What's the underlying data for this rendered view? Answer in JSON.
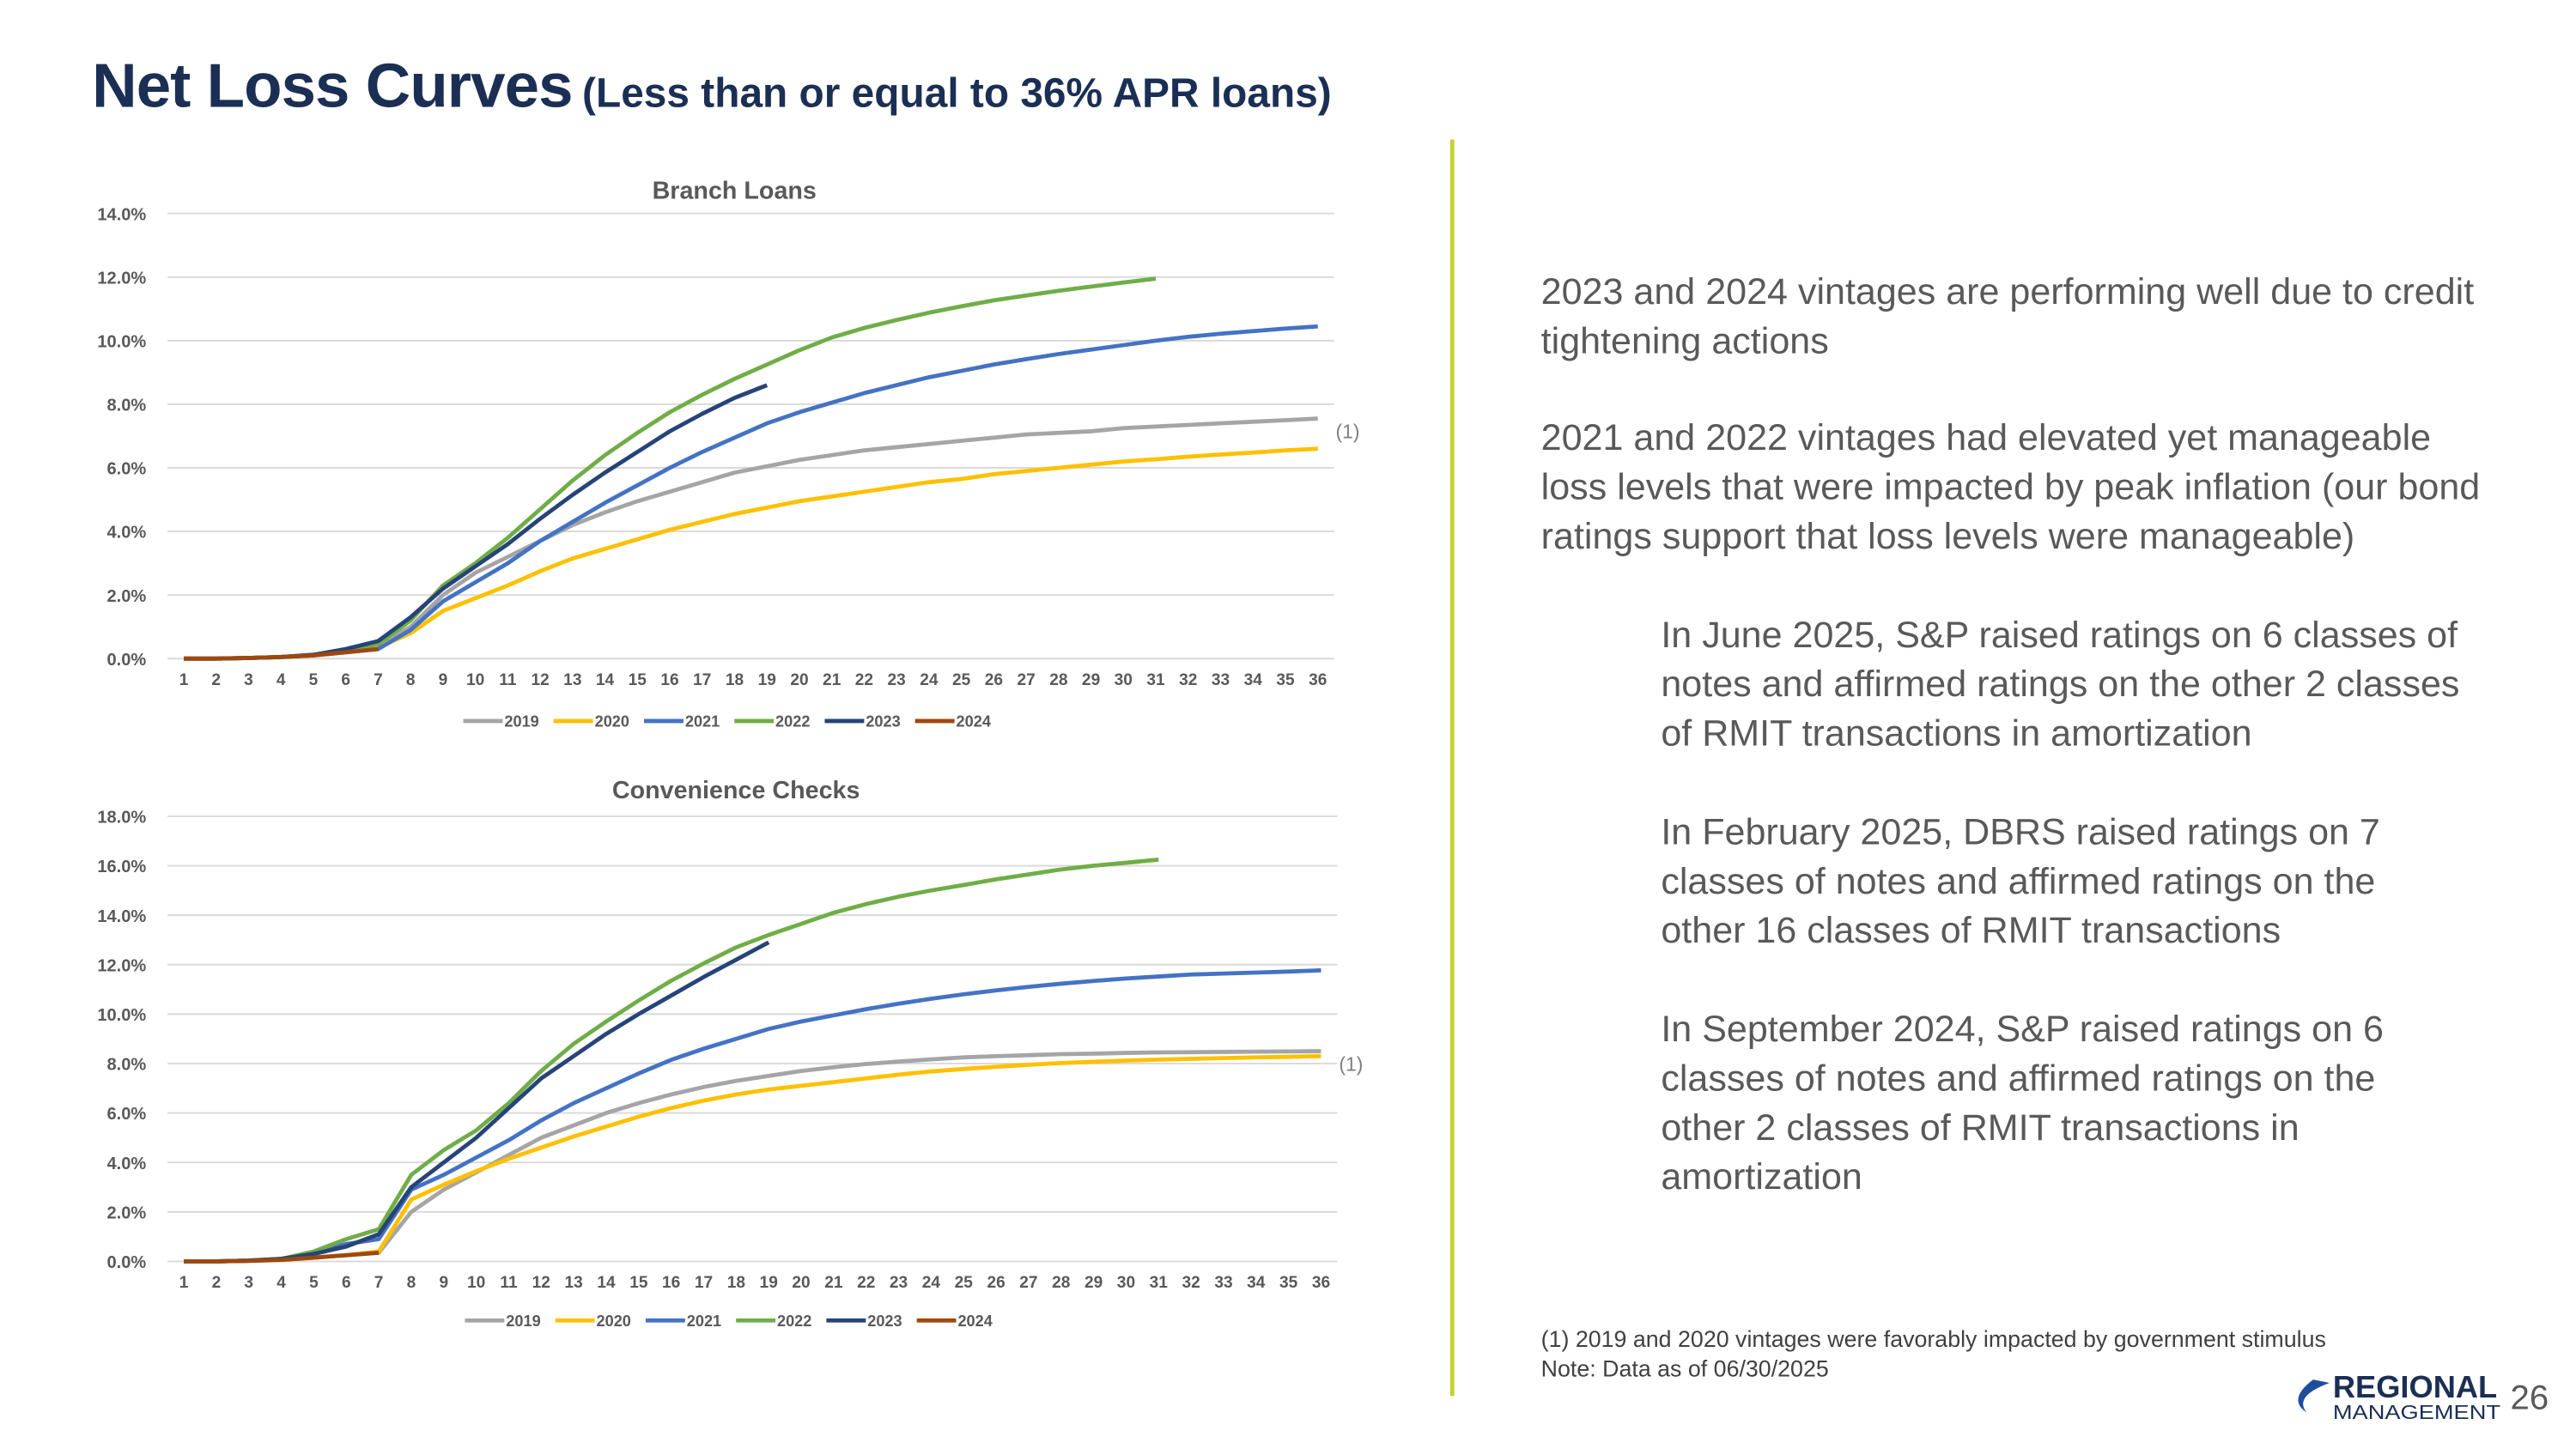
{
  "title": "Net Loss Curves",
  "subtitle": "(Less than or equal to 36% APR loans)",
  "chart_data": [
    {
      "type": "line",
      "title": "Branch Loans",
      "categories": [
        1,
        2,
        3,
        4,
        5,
        6,
        7,
        8,
        9,
        10,
        11,
        12,
        13,
        14,
        15,
        16,
        17,
        18,
        19,
        20,
        21,
        22,
        23,
        24,
        25,
        26,
        27,
        28,
        29,
        30,
        31,
        32,
        33,
        34,
        35,
        36
      ],
      "ylim": [
        0,
        14
      ],
      "yticks": [
        {
          "value": 0,
          "label": "0.0%"
        },
        {
          "value": 2,
          "label": "2.0%"
        },
        {
          "value": 4,
          "label": "4.0%"
        },
        {
          "value": 6,
          "label": "6.0%"
        },
        {
          "value": 8,
          "label": "8.0%"
        },
        {
          "value": 10,
          "label": "10.0%"
        },
        {
          "value": 12,
          "label": "12.0%"
        },
        {
          "value": 14,
          "label": "14.0%"
        }
      ],
      "grid": true,
      "legend": "bottom",
      "annotation": "(1)",
      "series": [
        {
          "name": "2019",
          "color": "#a5a5a5",
          "values": [
            0,
            0,
            0.02,
            0.05,
            0.1,
            0.25,
            0.4,
            1.0,
            2.0,
            2.7,
            3.2,
            3.7,
            4.2,
            4.6,
            4.95,
            5.25,
            5.55,
            5.85,
            6.05,
            6.25,
            6.4,
            6.55,
            6.65,
            6.75,
            6.85,
            6.95,
            7.05,
            7.1,
            7.15,
            7.25,
            7.3,
            7.35,
            7.4,
            7.45,
            7.5,
            7.55
          ]
        },
        {
          "name": "2020",
          "color": "#ffc000",
          "values": [
            0,
            0,
            0.02,
            0.05,
            0.1,
            0.2,
            0.35,
            0.8,
            1.5,
            1.9,
            2.3,
            2.75,
            3.15,
            3.45,
            3.75,
            4.05,
            4.3,
            4.55,
            4.75,
            4.95,
            5.1,
            5.25,
            5.4,
            5.55,
            5.65,
            5.8,
            5.9,
            6.0,
            6.1,
            6.2,
            6.27,
            6.35,
            6.42,
            6.48,
            6.55,
            6.6
          ]
        },
        {
          "name": "2021",
          "color": "#4472c4",
          "values": [
            0,
            0,
            0.02,
            0.05,
            0.1,
            0.2,
            0.3,
            0.9,
            1.8,
            2.4,
            3.0,
            3.7,
            4.3,
            4.9,
            5.45,
            6.0,
            6.5,
            6.95,
            7.4,
            7.75,
            8.05,
            8.35,
            8.6,
            8.85,
            9.05,
            9.25,
            9.42,
            9.58,
            9.72,
            9.86,
            10.0,
            10.12,
            10.22,
            10.3,
            10.38,
            10.45
          ]
        },
        {
          "name": "2022",
          "color": "#70ad47",
          "values": [
            0,
            0,
            0.02,
            0.05,
            0.12,
            0.25,
            0.45,
            1.2,
            2.3,
            3.0,
            3.8,
            4.7,
            5.6,
            6.4,
            7.1,
            7.75,
            8.3,
            8.8,
            9.25,
            9.7,
            10.1,
            10.4,
            10.65,
            10.88,
            11.08,
            11.27,
            11.42,
            11.57,
            11.7,
            11.83,
            11.95,
            null,
            null,
            null,
            null,
            null
          ]
        },
        {
          "name": "2023",
          "color": "#264478",
          "values": [
            0,
            0,
            0.02,
            0.05,
            0.12,
            0.3,
            0.55,
            1.3,
            2.2,
            2.9,
            3.6,
            4.4,
            5.15,
            5.85,
            6.5,
            7.15,
            7.7,
            8.2,
            8.6,
            null,
            null,
            null,
            null,
            null,
            null,
            null,
            null,
            null,
            null,
            null,
            null,
            null,
            null,
            null,
            null,
            null
          ]
        },
        {
          "name": "2024",
          "color": "#9e480e",
          "values": [
            0,
            0,
            0.02,
            0.05,
            0.1,
            0.2,
            0.3,
            null,
            null,
            null,
            null,
            null,
            null,
            null,
            null,
            null,
            null,
            null,
            null,
            null,
            null,
            null,
            null,
            null,
            null,
            null,
            null,
            null,
            null,
            null,
            null,
            null,
            null,
            null,
            null,
            null
          ]
        }
      ]
    },
    {
      "type": "line",
      "title": "Convenience Checks",
      "categories": [
        1,
        2,
        3,
        4,
        5,
        6,
        7,
        8,
        9,
        10,
        11,
        12,
        13,
        14,
        15,
        16,
        17,
        18,
        19,
        20,
        21,
        22,
        23,
        24,
        25,
        26,
        27,
        28,
        29,
        30,
        31,
        32,
        33,
        34,
        35,
        36
      ],
      "ylim": [
        0,
        18
      ],
      "yticks": [
        {
          "value": 0,
          "label": "0.0%"
        },
        {
          "value": 2,
          "label": "2.0%"
        },
        {
          "value": 4,
          "label": "4.0%"
        },
        {
          "value": 6,
          "label": "6.0%"
        },
        {
          "value": 8,
          "label": "8.0%"
        },
        {
          "value": 10,
          "label": "10.0%"
        },
        {
          "value": 12,
          "label": "12.0%"
        },
        {
          "value": 14,
          "label": "14.0%"
        },
        {
          "value": 16,
          "label": "16.0%"
        },
        {
          "value": 18,
          "label": "18.0%"
        }
      ],
      "grid": true,
      "legend": "bottom",
      "annotation": "(1)",
      "series": [
        {
          "name": "2019",
          "color": "#a5a5a5",
          "values": [
            0,
            0,
            0.03,
            0.08,
            0.15,
            0.25,
            0.35,
            2.0,
            2.9,
            3.6,
            4.3,
            5.0,
            5.5,
            6.0,
            6.4,
            6.75,
            7.05,
            7.3,
            7.5,
            7.7,
            7.85,
            7.98,
            8.08,
            8.17,
            8.25,
            8.3,
            8.34,
            8.38,
            8.4,
            8.43,
            8.45,
            8.46,
            8.47,
            8.48,
            8.49,
            8.5
          ]
        },
        {
          "name": "2020",
          "color": "#ffc000",
          "values": [
            0,
            0,
            0.03,
            0.08,
            0.15,
            0.25,
            0.4,
            2.5,
            3.1,
            3.65,
            4.15,
            4.6,
            5.05,
            5.45,
            5.85,
            6.2,
            6.5,
            6.75,
            6.95,
            7.1,
            7.25,
            7.4,
            7.55,
            7.68,
            7.78,
            7.87,
            7.95,
            8.02,
            8.07,
            8.12,
            8.16,
            8.19,
            8.22,
            8.25,
            8.27,
            8.3
          ]
        },
        {
          "name": "2021",
          "color": "#4472c4",
          "values": [
            0,
            0,
            0.03,
            0.1,
            0.35,
            0.7,
            0.9,
            2.9,
            3.5,
            4.2,
            4.9,
            5.7,
            6.4,
            7.0,
            7.6,
            8.15,
            8.6,
            9.0,
            9.4,
            9.7,
            9.95,
            10.2,
            10.42,
            10.62,
            10.8,
            10.96,
            11.1,
            11.23,
            11.34,
            11.44,
            11.52,
            11.6,
            11.64,
            11.68,
            11.72,
            11.77
          ]
        },
        {
          "name": "2022",
          "color": "#70ad47",
          "values": [
            0,
            0,
            0.03,
            0.1,
            0.4,
            0.9,
            1.3,
            3.5,
            4.5,
            5.3,
            6.4,
            7.7,
            8.8,
            9.7,
            10.55,
            11.35,
            12.05,
            12.7,
            13.2,
            13.65,
            14.1,
            14.45,
            14.75,
            15.0,
            15.22,
            15.45,
            15.65,
            15.85,
            16.0,
            16.12,
            16.25,
            null,
            null,
            null,
            null,
            null
          ]
        },
        {
          "name": "2023",
          "color": "#264478",
          "values": [
            0,
            0,
            0.03,
            0.1,
            0.3,
            0.6,
            1.1,
            3.0,
            4.0,
            5.0,
            6.2,
            7.4,
            8.3,
            9.2,
            10.0,
            10.75,
            11.5,
            12.2,
            12.9,
            null,
            null,
            null,
            null,
            null,
            null,
            null,
            null,
            null,
            null,
            null,
            null,
            null,
            null,
            null,
            null,
            null
          ]
        },
        {
          "name": "2024",
          "color": "#9e480e",
          "values": [
            0,
            0,
            0.02,
            0.06,
            0.15,
            0.25,
            0.35,
            null,
            null,
            null,
            null,
            null,
            null,
            null,
            null,
            null,
            null,
            null,
            null,
            null,
            null,
            null,
            null,
            null,
            null,
            null,
            null,
            null,
            null,
            null,
            null,
            null,
            null,
            null,
            null,
            null
          ]
        }
      ]
    }
  ],
  "paragraphs": [
    {
      "lines": [
        "2023 and 2024 vintages are performing well due to credit",
        "tightening actions"
      ]
    },
    {
      "lines": [
        "2021 and 2022 vintages had elevated yet manageable",
        "loss levels that were impacted by peak inflation (our bond",
        "ratings support that loss levels were manageable)"
      ]
    },
    {
      "lines": [
        "In June 2025, S&P raised ratings on 6 classes of",
        "notes and affirmed ratings on the other 2 classes",
        "of RMIT transactions in amortization"
      ]
    },
    {
      "lines": [
        "In February 2025, DBRS raised ratings on 7",
        "classes of notes and affirmed ratings on the",
        "other 16 classes of RMIT transactions"
      ]
    },
    {
      "lines": [
        "In September 2024, S&P raised ratings on 6",
        "classes of notes and affirmed ratings on the",
        "other 2 classes of RMIT transactions in",
        "amortization"
      ]
    }
  ],
  "footnote": "(1)  2019 and 2020 vintages were favorably impacted by government stimulus",
  "note": "Note: Data as of 06/30/2025",
  "logo": {
    "line1": "REGIONAL",
    "line2": "MANAGEMENT"
  },
  "page_number": "26"
}
